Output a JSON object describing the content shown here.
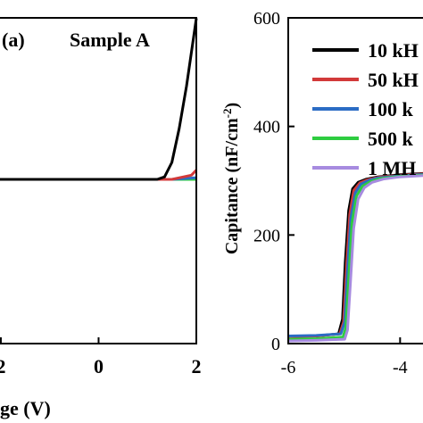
{
  "chart_data": [
    {
      "type": "line",
      "panel_label": "(a)",
      "annotation": "Sample A",
      "xlabel": "ge (V)",
      "xlim": [
        -2.2,
        2.0
      ],
      "x_tick_labels": [
        "2",
        "0",
        "2"
      ],
      "x_ticks": [
        -2,
        0,
        2
      ],
      "grid": false,
      "series": [
        {
          "color": "#7b4fd0",
          "x": [
            -2.2,
            0,
            2.0
          ],
          "y": [
            0,
            0,
            0
          ]
        },
        {
          "color": "#2ecc40",
          "x": [
            -2.2,
            0,
            2.0
          ],
          "y": [
            0,
            0,
            0
          ]
        },
        {
          "color": "#2b6cc4",
          "x": [
            -2.2,
            0,
            1.5,
            2.0
          ],
          "y": [
            0,
            0,
            0,
            0.2
          ]
        },
        {
          "color": "#d23a3a",
          "x": [
            -2.2,
            0,
            1.5,
            1.9,
            2.0
          ],
          "y": [
            0,
            0,
            0,
            0.5,
            1.1
          ]
        },
        {
          "color": "#000000",
          "x": [
            -2.2,
            0,
            1.2,
            1.35,
            1.5,
            1.65,
            1.8,
            1.9,
            2.0
          ],
          "y": [
            0,
            0,
            0,
            0.3,
            2,
            6,
            11,
            15,
            19
          ]
        }
      ]
    },
    {
      "type": "line",
      "xlabel": "",
      "ylabel": "Capitance (nF/cm²)",
      "ylabel_main": "Capitance (nF/cm",
      "ylabel_sup": "-2",
      "ylabel_end": ")",
      "xlim": [
        -6.0,
        -3.0
      ],
      "ylim": [
        0,
        600
      ],
      "x_tick_labels": [
        "-6",
        "-4"
      ],
      "x_ticks": [
        -6,
        -4
      ],
      "y_tick_labels": [
        "0",
        "200",
        "400",
        "600"
      ],
      "y_ticks": [
        0,
        200,
        400,
        600
      ],
      "grid": false,
      "legend": "top-right",
      "series": [
        {
          "name": "10 kH",
          "color": "#000000",
          "x": [
            -6.0,
            -5.5,
            -5.1,
            -5.03,
            -4.98,
            -4.92,
            -4.85,
            -4.75,
            -4.6,
            -4.4,
            -4.0,
            -3.5,
            -3.0
          ],
          "y": [
            13,
            14,
            18,
            45,
            150,
            245,
            285,
            297,
            303,
            307,
            311,
            314,
            316
          ]
        },
        {
          "name": "50 kH",
          "color": "#d23a3a",
          "x": [
            -6.0,
            -5.5,
            -5.08,
            -5.01,
            -4.96,
            -4.9,
            -4.83,
            -4.72,
            -4.58,
            -4.4,
            -4.0,
            -3.5,
            -3.0
          ],
          "y": [
            13,
            14,
            18,
            40,
            140,
            238,
            282,
            296,
            302,
            306,
            310,
            313,
            315
          ]
        },
        {
          "name": "100 k",
          "color": "#2b6cc4",
          "x": [
            -6.0,
            -5.5,
            -5.06,
            -4.99,
            -4.94,
            -4.88,
            -4.8,
            -4.7,
            -4.55,
            -4.4,
            -4.0,
            -3.5,
            -3.0
          ],
          "y": [
            14,
            15,
            18,
            40,
            135,
            232,
            278,
            294,
            301,
            305,
            309,
            312,
            314
          ]
        },
        {
          "name": "500 k",
          "color": "#2ecc40",
          "x": [
            -6.0,
            -5.5,
            -5.02,
            -4.97,
            -4.92,
            -4.86,
            -4.78,
            -4.67,
            -4.52,
            -4.35,
            -4.0,
            -3.5,
            -3.0
          ],
          "y": [
            8,
            9,
            12,
            30,
            120,
            222,
            272,
            290,
            299,
            304,
            308,
            311,
            313
          ]
        },
        {
          "name": "1 MH",
          "color": "#a78be0",
          "x": [
            -6.0,
            -5.5,
            -4.99,
            -4.94,
            -4.89,
            -4.83,
            -4.75,
            -4.64,
            -4.5,
            -4.3,
            -4.0,
            -3.5,
            -3.0
          ],
          "y": [
            5,
            6,
            8,
            25,
            110,
            212,
            266,
            287,
            297,
            303,
            307,
            310,
            312
          ]
        }
      ]
    }
  ]
}
